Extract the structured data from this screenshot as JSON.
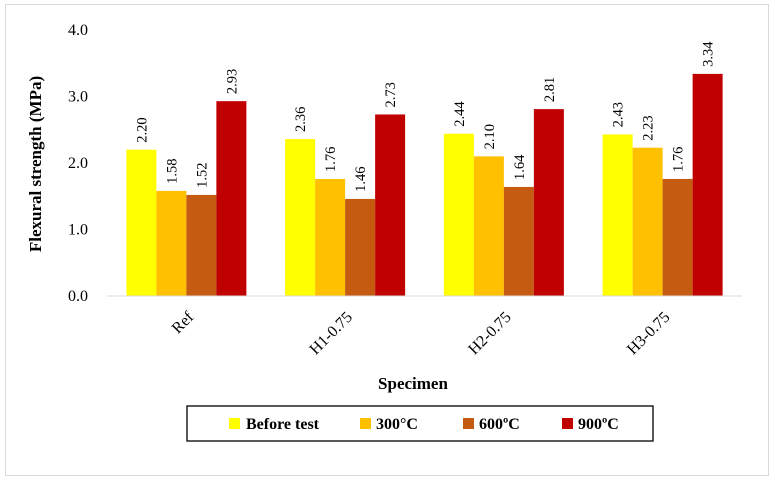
{
  "chart_data": {
    "type": "bar",
    "title": "",
    "xlabel": "Specimen",
    "ylabel": "Flexural strength (MPa)",
    "ylim": [
      0,
      4
    ],
    "yticks": [
      "0.0",
      "1.0",
      "2.0",
      "3.0",
      "4.0"
    ],
    "categories": [
      "Ref",
      "H1-0.75",
      "H2-0.75",
      "H3-0.75"
    ],
    "series": [
      {
        "name": "Before test",
        "color": "#ffff00",
        "values": [
          2.2,
          2.36,
          2.44,
          2.43
        ],
        "labels": [
          "2.20",
          "2.36",
          "2.44",
          "2.43"
        ]
      },
      {
        "name": "300°C",
        "color": "#ffc000",
        "values": [
          1.58,
          1.76,
          2.1,
          2.23
        ],
        "labels": [
          "1.58",
          "1.76",
          "2.10",
          "2.23"
        ]
      },
      {
        "name": "600ºC",
        "color": "#c55a11",
        "values": [
          1.52,
          1.46,
          1.64,
          1.76
        ],
        "labels": [
          "1.52",
          "1.46",
          "1.64",
          "1.76"
        ]
      },
      {
        "name": "900ºC",
        "color": "#c00000",
        "values": [
          2.93,
          2.73,
          2.81,
          3.34
        ],
        "labels": [
          "2.93",
          "2.73",
          "2.81",
          "3.34"
        ]
      }
    ],
    "grid": false,
    "legend": "bottom"
  }
}
